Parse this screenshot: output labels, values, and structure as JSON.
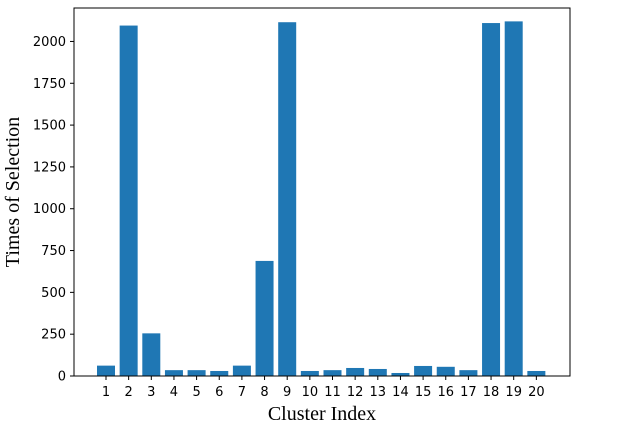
{
  "chart_data": {
    "type": "bar",
    "title": "",
    "xlabel": "Cluster Index",
    "ylabel": "Times of Selection",
    "categories": [
      "1",
      "2",
      "3",
      "4",
      "5",
      "6",
      "7",
      "8",
      "9",
      "10",
      "11",
      "12",
      "13",
      "14",
      "15",
      "16",
      "17",
      "18",
      "19",
      "20"
    ],
    "values": [
      62,
      2095,
      255,
      35,
      35,
      30,
      62,
      688,
      2115,
      30,
      35,
      48,
      42,
      18,
      60,
      55,
      35,
      2110,
      2120,
      30
    ],
    "ylim": [
      0,
      2200
    ],
    "yticks": [
      0,
      250,
      500,
      750,
      1000,
      1250,
      1500,
      1750,
      2000
    ],
    "grid": false,
    "bar_color": "#1f77b4"
  }
}
